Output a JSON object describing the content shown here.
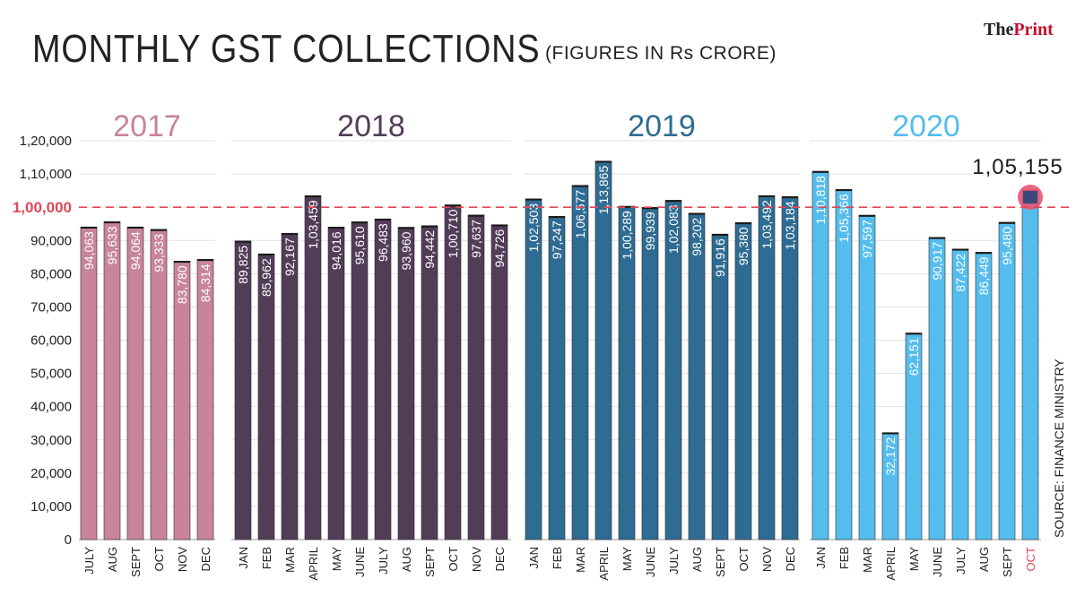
{
  "header": {
    "title": "MONTHLY GST COLLECTIONS",
    "subtitle": "(FIGURES IN Rs CRORE)",
    "brand_a": "The",
    "brand_b": "Print"
  },
  "footer": {
    "source": "SOURCE: FINANCE MINISTRY"
  },
  "colors": {
    "2017": "#c8849d",
    "2018": "#523d57",
    "2019": "#2f6c93",
    "2020": "#55bdee",
    "reference": "#e0485a",
    "highlight_circle": "#e85472",
    "axis_text": "#222222"
  },
  "chart_data": {
    "type": "bar",
    "title": "MONTHLY GST COLLECTIONS",
    "subtitle": "(FIGURES IN Rs CRORE)",
    "ylim": [
      0,
      120000
    ],
    "yticks": [
      {
        "v": 0,
        "label": "0"
      },
      {
        "v": 10000,
        "label": "10,000"
      },
      {
        "v": 20000,
        "label": "20,000"
      },
      {
        "v": 30000,
        "label": "30,000"
      },
      {
        "v": 40000,
        "label": "40,000"
      },
      {
        "v": 50000,
        "label": "50,000"
      },
      {
        "v": 60000,
        "label": "60,000"
      },
      {
        "v": 70000,
        "label": "70,000"
      },
      {
        "v": 80000,
        "label": "80,000"
      },
      {
        "v": 90000,
        "label": "90,000"
      },
      {
        "v": 100000,
        "label": "1,00,000"
      },
      {
        "v": 110000,
        "label": "1,10,000"
      },
      {
        "v": 120000,
        "label": "1,20,000"
      }
    ],
    "reference_line": {
      "value": 100000,
      "label": "1,00,000"
    },
    "gridlines": true,
    "series": [
      {
        "name": "2017",
        "months": [
          "JULY",
          "AUG",
          "SEPT",
          "OCT",
          "NOV",
          "DEC"
        ],
        "values": [
          94063,
          95633,
          94064,
          93333,
          83780,
          84314
        ],
        "labels": [
          "94,063",
          "95,633",
          "94,064",
          "93,333",
          "83,780",
          "84,314"
        ]
      },
      {
        "name": "2018",
        "months": [
          "JAN",
          "FEB",
          "MAR",
          "APRIL",
          "MAY",
          "JUNE",
          "JULY",
          "AUG",
          "SEPT",
          "OCT",
          "NOV",
          "DEC"
        ],
        "values": [
          89825,
          85962,
          92167,
          103459,
          94016,
          95610,
          96483,
          93960,
          94442,
          100710,
          97637,
          94726
        ],
        "labels": [
          "89,825",
          "85,962",
          "92,167",
          "1,03,459",
          "94,016",
          "95,610",
          "96,483",
          "93,960",
          "94,442",
          "1,00,710",
          "97,637",
          "94,726"
        ]
      },
      {
        "name": "2019",
        "months": [
          "JAN",
          "FEB",
          "MAR",
          "APRIL",
          "MAY",
          "JUNE",
          "JULY",
          "AUG",
          "SEPT",
          "OCT",
          "NOV",
          "DEC"
        ],
        "values": [
          102503,
          97247,
          106577,
          113865,
          100289,
          99939,
          102083,
          98202,
          91916,
          95380,
          103492,
          103184
        ],
        "labels": [
          "1,02,503",
          "97,247",
          "1,06,577",
          "1,13,865",
          "1,00,289",
          "99,939",
          "1,02,083",
          "98,202",
          "91,916",
          "95,380",
          "1,03,492",
          "1,03,184"
        ]
      },
      {
        "name": "2020",
        "months": [
          "JAN",
          "FEB",
          "MAR",
          "APRIL",
          "MAY",
          "JUNE",
          "JULY",
          "AUG",
          "SEPT",
          "OCT"
        ],
        "values": [
          110818,
          105366,
          97597,
          32172,
          62151,
          90917,
          87422,
          86449,
          95480,
          105155
        ],
        "labels": [
          "1,10,818",
          "1,05,366",
          "97,597",
          "32,172",
          "62,151",
          "90,917",
          "87,422",
          "86,449",
          "95,480",
          ""
        ]
      }
    ],
    "callout": {
      "series": "2020",
      "month": "OCT",
      "value": 105155,
      "label": "1,05,155"
    }
  }
}
